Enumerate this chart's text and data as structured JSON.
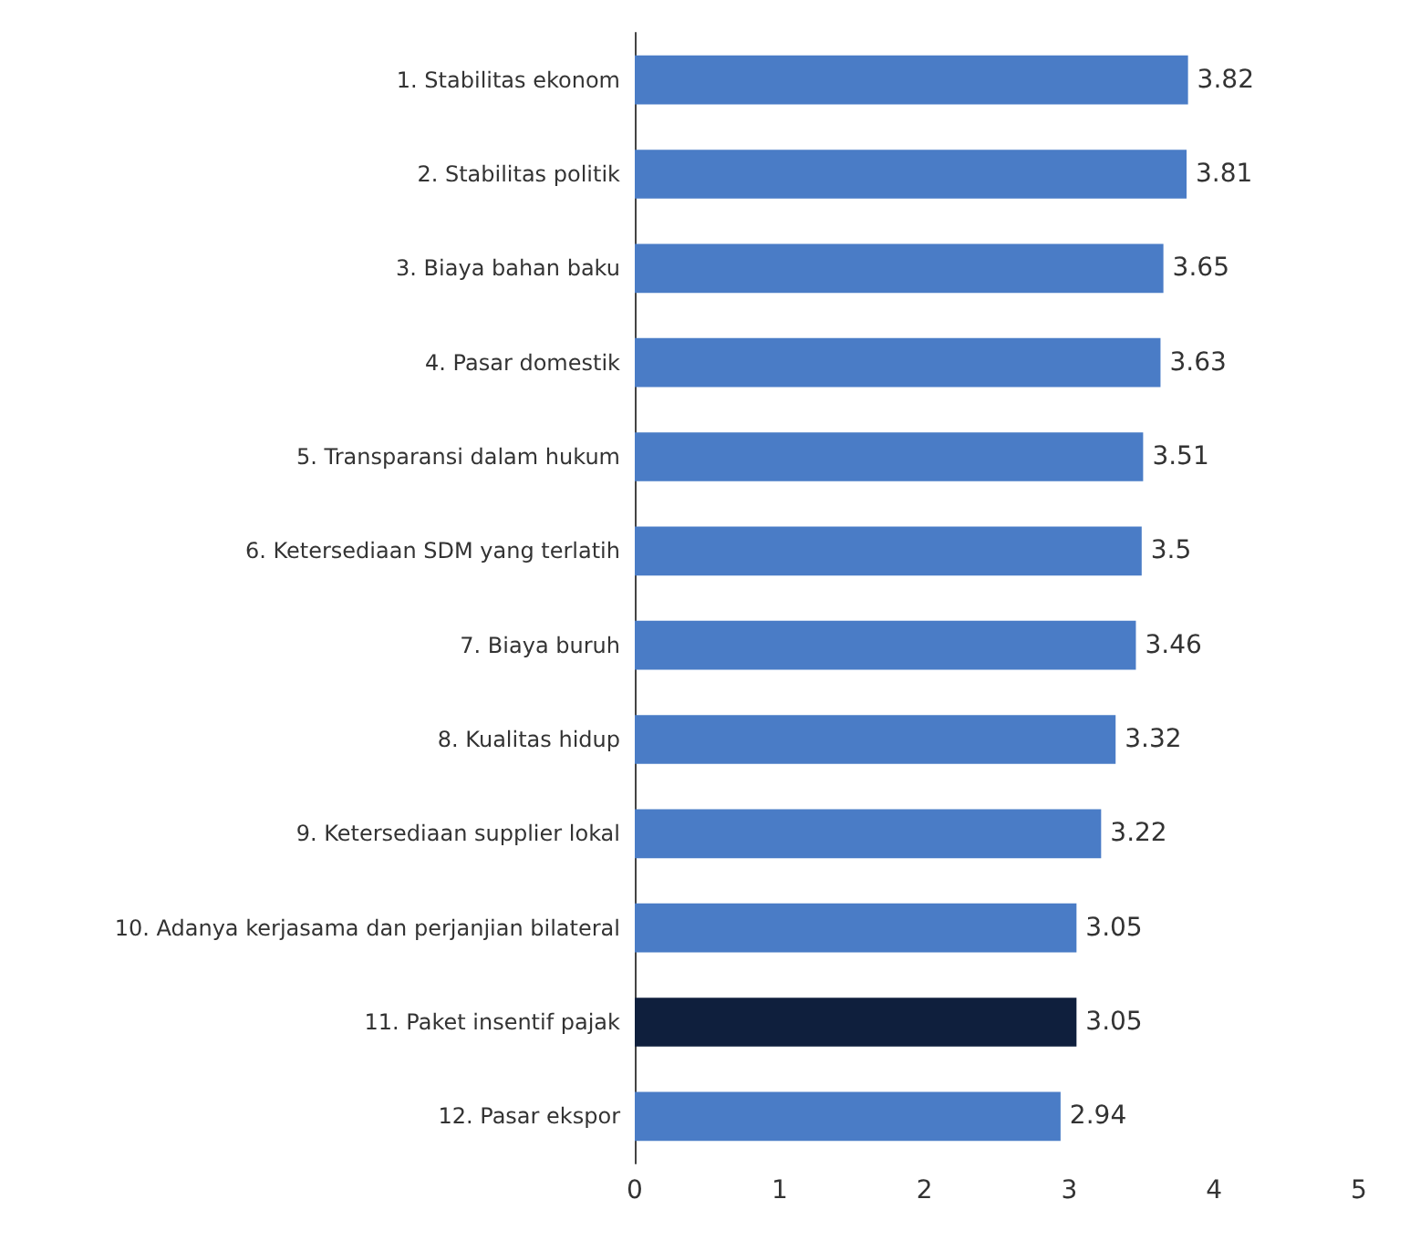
{
  "chart_data": {
    "type": "bar",
    "orientation": "horizontal",
    "categories": [
      "1. Stabilitas ekonom",
      "2. Stabilitas politik",
      "3. Biaya bahan baku",
      "4. Pasar domestik",
      "5. Transparansi dalam hukum",
      "6. Ketersediaan SDM yang terlatih",
      "7. Biaya buruh",
      "8. Kualitas hidup",
      "9. Ketersediaan supplier lokal",
      "10. Adanya kerjasama dan perjanjian bilateral",
      "11. Paket insentif pajak",
      "12. Pasar ekspor"
    ],
    "values": [
      3.82,
      3.81,
      3.65,
      3.63,
      3.51,
      3.5,
      3.46,
      3.32,
      3.22,
      3.05,
      3.05,
      2.94
    ],
    "colors": [
      "#4a7cc6",
      "#4a7cc6",
      "#4a7cc6",
      "#4a7cc6",
      "#4a7cc6",
      "#4a7cc6",
      "#4a7cc6",
      "#4a7cc6",
      "#4a7cc6",
      "#4a7cc6",
      "#0f1f3d",
      "#4a7cc6"
    ],
    "xlim": [
      0,
      5
    ],
    "xticks": [
      0,
      1,
      2,
      3,
      4,
      5
    ],
    "data_labels": true,
    "grid": false
  }
}
